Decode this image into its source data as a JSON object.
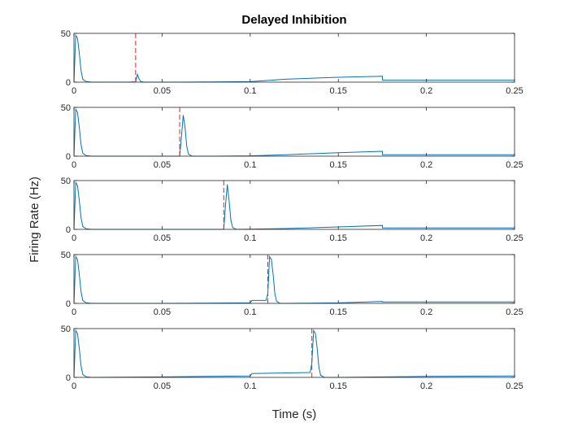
{
  "chart_data": {
    "type": "line",
    "title": "Delayed Inhibition",
    "xlabel": "Time (s)",
    "ylabel": "Firing Rate (Hz)",
    "xlim": [
      0,
      0.25
    ],
    "ylim": [
      0,
      50
    ],
    "x_ticks": [
      0,
      0.05,
      0.1,
      0.15,
      0.2,
      0.25
    ],
    "x_tick_labels": [
      "0",
      "0.05",
      "0.1",
      "0.15",
      "0.2",
      "0.25"
    ],
    "y_ticks": [
      0,
      50
    ],
    "y_tick_labels": [
      "0",
      "50"
    ],
    "grid": false,
    "line_color": "#0072bd",
    "marker_color": "#d62728",
    "panels": [
      {
        "marker_x": 0.035,
        "series": [
          {
            "x": [
              0,
              0.001,
              0.002,
              0.003,
              0.004,
              0.005,
              0.007,
              0.01,
              0.03,
              0.035,
              0.036,
              0.037,
              0.038,
              0.04,
              0.06,
              0.08,
              0.1,
              0.12,
              0.15,
              0.175,
              0.1751,
              0.2,
              0.25
            ],
            "y": [
              0,
              48,
              45,
              30,
              12,
              3,
              0.5,
              0,
              0,
              0.3,
              8,
              3,
              0.5,
              0,
              0,
              0.2,
              0.5,
              3,
              5,
              6,
              2,
              2,
              2
            ]
          }
        ]
      },
      {
        "marker_x": 0.06,
        "series": [
          {
            "x": [
              0,
              0.001,
              0.002,
              0.003,
              0.004,
              0.005,
              0.007,
              0.01,
              0.06,
              0.061,
              0.062,
              0.063,
              0.064,
              0.065,
              0.067,
              0.08,
              0.1,
              0.12,
              0.15,
              0.175,
              0.1751,
              0.2,
              0.25
            ],
            "y": [
              0,
              48,
              45,
              30,
              12,
              3,
              0.5,
              0,
              0,
              20,
              42,
              30,
              10,
              2,
              0,
              0,
              0.3,
              1.5,
              3.5,
              5,
              1.5,
              1.5,
              1.5
            ]
          }
        ]
      },
      {
        "marker_x": 0.085,
        "series": [
          {
            "x": [
              0,
              0.001,
              0.002,
              0.003,
              0.004,
              0.005,
              0.007,
              0.01,
              0.085,
              0.086,
              0.087,
              0.088,
              0.089,
              0.09,
              0.092,
              0.1,
              0.12,
              0.15,
              0.175,
              0.1751,
              0.2,
              0.25
            ],
            "y": [
              0,
              48,
              45,
              30,
              12,
              3,
              0.5,
              0,
              0,
              25,
              46,
              30,
              10,
              2,
              0,
              0.2,
              0.8,
              2.5,
              4,
              1.5,
              1.5,
              1.5
            ]
          }
        ]
      },
      {
        "marker_x": 0.11,
        "series": [
          {
            "x": [
              0,
              0.001,
              0.002,
              0.003,
              0.004,
              0.005,
              0.007,
              0.01,
              0.05,
              0.1,
              0.101,
              0.109,
              0.11,
              0.111,
              0.112,
              0.113,
              0.114,
              0.115,
              0.117,
              0.12,
              0.15,
              0.175,
              0.1751,
              0.2,
              0.25
            ],
            "y": [
              0,
              48,
              45,
              30,
              12,
              3,
              0.5,
              0,
              0,
              0.5,
              3,
              3,
              10,
              48,
              45,
              30,
              10,
              2,
              0,
              0,
              0.5,
              2,
              1.5,
              1.5,
              1.5
            ]
          }
        ]
      },
      {
        "marker_x": 0.135,
        "series": [
          {
            "x": [
              0,
              0.001,
              0.002,
              0.003,
              0.004,
              0.005,
              0.007,
              0.01,
              0.05,
              0.1,
              0.101,
              0.134,
              0.135,
              0.136,
              0.137,
              0.138,
              0.139,
              0.14,
              0.142,
              0.15,
              0.2,
              0.25
            ],
            "y": [
              0,
              48,
              45,
              30,
              12,
              3,
              0.5,
              0,
              0.5,
              1.5,
              4,
              5,
              15,
              48,
              45,
              30,
              10,
              2,
              0,
              0,
              1,
              1.5
            ]
          }
        ]
      }
    ]
  }
}
